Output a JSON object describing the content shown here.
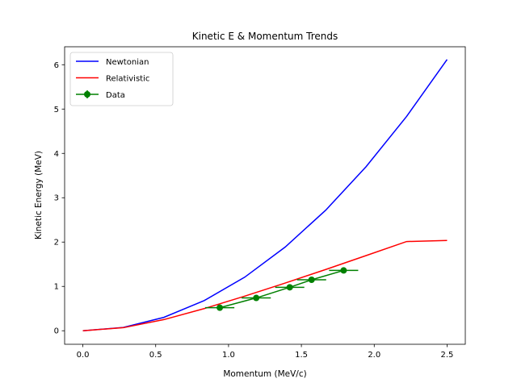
{
  "chart_data": {
    "type": "line",
    "title": "Kinetic E & Momentum Trends",
    "xlabel": "Momentum (MeV/c)",
    "ylabel": "Kinetic Energy (MeV)",
    "xlim": [
      -0.125,
      2.625
    ],
    "ylim": [
      -0.305,
      6.405
    ],
    "xticks": [
      0.0,
      0.5,
      1.0,
      1.5,
      2.0,
      2.5
    ],
    "xtick_labels": [
      "0.0",
      "0.5",
      "1.0",
      "1.5",
      "2.0",
      "2.5"
    ],
    "yticks": [
      0,
      1,
      2,
      3,
      4,
      5,
      6
    ],
    "ytick_labels": [
      "0",
      "1",
      "2",
      "3",
      "4",
      "5",
      "6"
    ],
    "grid": false,
    "legend_position": "top-left",
    "series": [
      {
        "name": "Newtonian",
        "color": "#0000ff",
        "kind": "line",
        "x": [
          0.0,
          0.278,
          0.556,
          0.833,
          1.111,
          1.389,
          1.667,
          1.944,
          2.222,
          2.5
        ],
        "y": [
          0.0,
          0.075,
          0.302,
          0.68,
          1.208,
          1.888,
          2.719,
          3.701,
          4.833,
          6.117
        ]
      },
      {
        "name": "Relativistic",
        "color": "#ff0000",
        "kind": "line",
        "x": [
          0.0,
          0.278,
          0.556,
          0.833,
          1.111,
          1.389,
          1.667,
          1.944,
          2.222,
          2.5
        ],
        "y": [
          0.0,
          0.069,
          0.251,
          0.5,
          0.781,
          1.076,
          1.382,
          1.695,
          2.012,
          2.036
        ]
      },
      {
        "name": "Data",
        "color": "#008000",
        "kind": "errorbar",
        "x": [
          0.94,
          1.19,
          1.42,
          1.57,
          1.79
        ],
        "y": [
          0.52,
          0.74,
          0.98,
          1.15,
          1.36
        ],
        "xerr": [
          0.1,
          0.1,
          0.1,
          0.1,
          0.1
        ],
        "yerr": [
          0.04,
          0.04,
          0.04,
          0.04,
          0.04
        ]
      }
    ]
  }
}
